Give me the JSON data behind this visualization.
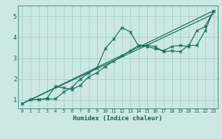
{
  "xlabel": "Humidex (Indice chaleur)",
  "bg_color": "#cce8e4",
  "grid_color": "#aad0cc",
  "line_color": "#1a6e5e",
  "xlim": [
    -0.5,
    23.5
  ],
  "ylim": [
    0.6,
    5.5
  ],
  "yticks": [
    1,
    2,
    3,
    4,
    5
  ],
  "xticks": [
    0,
    1,
    2,
    3,
    4,
    5,
    6,
    7,
    8,
    9,
    10,
    11,
    12,
    13,
    14,
    15,
    16,
    17,
    18,
    19,
    20,
    21,
    22,
    23
  ],
  "line1_x": [
    0,
    1,
    2,
    3,
    4,
    5,
    6,
    7,
    8,
    9,
    10,
    11,
    12,
    13,
    14,
    15,
    16,
    17,
    18,
    19,
    20,
    21,
    22,
    23
  ],
  "line1_y": [
    0.82,
    1.02,
    1.02,
    1.05,
    1.05,
    1.38,
    1.6,
    2.0,
    2.28,
    2.52,
    3.45,
    3.9,
    4.45,
    4.25,
    3.58,
    3.55,
    3.45,
    3.35,
    3.55,
    3.6,
    3.55,
    4.3,
    4.5,
    5.25
  ],
  "line2_x": [
    0,
    1,
    2,
    3,
    4,
    5,
    6,
    7,
    8,
    9,
    10,
    11,
    12,
    13,
    14,
    15,
    16,
    17,
    18,
    19,
    20,
    21,
    22,
    23
  ],
  "line2_y": [
    0.82,
    1.02,
    1.02,
    1.08,
    1.65,
    1.58,
    1.5,
    1.7,
    2.1,
    2.3,
    2.6,
    2.85,
    3.1,
    3.35,
    3.6,
    3.6,
    3.55,
    3.3,
    3.35,
    3.3,
    3.6,
    3.6,
    4.3,
    5.25
  ],
  "line3_x": [
    0,
    23
  ],
  "line3_y": [
    0.82,
    5.25
  ],
  "line4_x": [
    0,
    23
  ],
  "line4_y": [
    0.82,
    5.25
  ]
}
